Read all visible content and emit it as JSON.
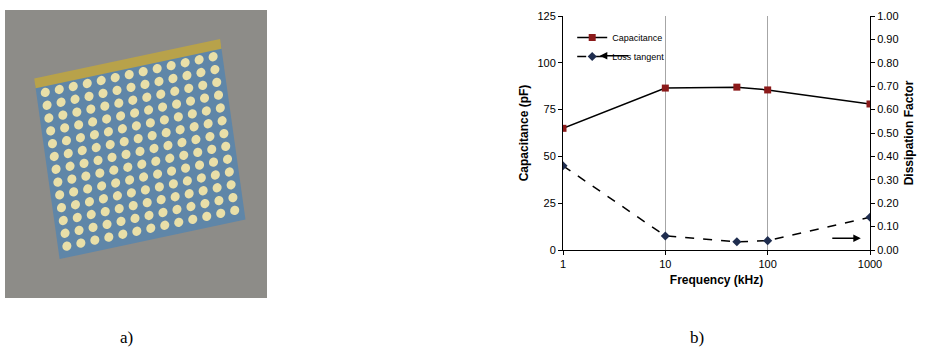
{
  "photo": {
    "caption": "a)"
  },
  "chart": {
    "caption": "b)"
  },
  "chart_data": {
    "type": "line",
    "x": [
      1,
      10,
      50,
      100,
      1000
    ],
    "x_label": "Frequency (kHz)",
    "y_label": "Capacitance (pF)",
    "y2_label": "Dissipation Factor",
    "log": "x",
    "grid": "x",
    "legend": "top left",
    "xlim": [
      1,
      1000
    ],
    "xticks": [
      1,
      10,
      100,
      1000
    ],
    "ylim": [
      0,
      125
    ],
    "yticks": [
      0,
      25,
      50,
      75,
      100,
      125
    ],
    "y2lim": [
      0,
      1
    ],
    "y2ticks": [
      {
        "value": 0,
        "label": "0.00"
      },
      {
        "value": 0.1,
        "label": "0.10"
      },
      {
        "value": 0.2,
        "label": "0.20"
      },
      {
        "value": 0.3,
        "label": "0.30"
      },
      {
        "value": 0.4,
        "label": "0.40"
      },
      {
        "value": 0.5,
        "label": "0.50"
      },
      {
        "value": 0.6,
        "label": "0.60"
      },
      {
        "value": 0.7,
        "label": "0.70"
      },
      {
        "value": 0.8,
        "label": "0.80"
      },
      {
        "value": 0.9,
        "label": "0.90"
      },
      {
        "value": 1,
        "label": "1.00"
      }
    ],
    "series": [
      {
        "name": "Capacitance",
        "color": "#8b1a1a",
        "marker": "square",
        "line_style": "solid",
        "values": [
          65,
          86.5,
          87,
          85.5,
          78
        ]
      },
      {
        "name": "Loss tangent",
        "color": "#1f2d4f",
        "marker": "diamond",
        "line_style": "dash",
        "axis": "y2",
        "values": [
          0.36,
          0.06,
          0.035,
          0.04,
          0.14
        ]
      }
    ]
  }
}
